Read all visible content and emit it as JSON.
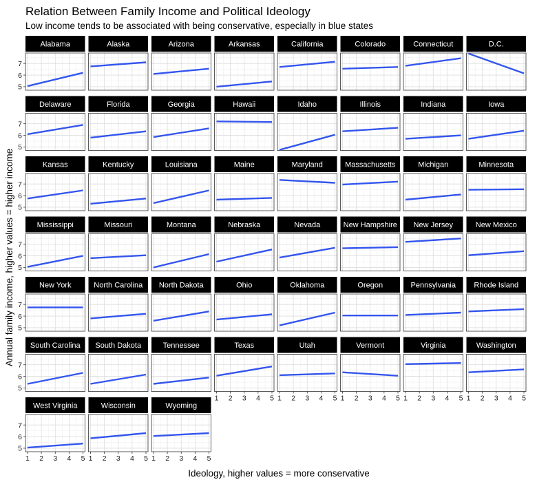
{
  "chart_data": {
    "type": "line",
    "facet": "state",
    "title": "Relation Between Family Income and Political Ideology",
    "subtitle": "Low income tends to be associated with being conservative, especially in blue states",
    "xlabel": "Ideology, higher values = more conservative",
    "ylabel": "Annual family income, higher values = higher income",
    "xlim": [
      1,
      5
    ],
    "ylim": [
      4.7,
      7.9
    ],
    "x_ticks": [
      1,
      2,
      3,
      4,
      5
    ],
    "y_ticks": [
      5,
      6,
      7
    ],
    "grid": true,
    "line_color": "#3355ee",
    "panels": [
      {
        "label": "Alabama",
        "x": [
          1,
          5
        ],
        "y": [
          5.05,
          6.2
        ]
      },
      {
        "label": "Alaska",
        "x": [
          1,
          5
        ],
        "y": [
          6.75,
          7.1
        ]
      },
      {
        "label": "Arizona",
        "x": [
          1,
          5
        ],
        "y": [
          6.1,
          6.55
        ]
      },
      {
        "label": "Arkansas",
        "x": [
          1,
          5
        ],
        "y": [
          5.0,
          5.45
        ]
      },
      {
        "label": "California",
        "x": [
          1,
          5
        ],
        "y": [
          6.7,
          7.15
        ]
      },
      {
        "label": "Colorado",
        "x": [
          1,
          5
        ],
        "y": [
          6.55,
          6.7
        ]
      },
      {
        "label": "Connecticut",
        "x": [
          1,
          5
        ],
        "y": [
          6.8,
          7.45
        ]
      },
      {
        "label": "D.C.",
        "x": [
          1,
          5
        ],
        "y": [
          7.85,
          6.15
        ]
      },
      {
        "label": "Delaware",
        "x": [
          1,
          5
        ],
        "y": [
          6.1,
          6.9
        ]
      },
      {
        "label": "Florida",
        "x": [
          1,
          5
        ],
        "y": [
          5.8,
          6.35
        ]
      },
      {
        "label": "Georgia",
        "x": [
          1,
          5
        ],
        "y": [
          5.85,
          6.6
        ]
      },
      {
        "label": "Hawaii",
        "x": [
          1,
          5
        ],
        "y": [
          7.2,
          7.15
        ]
      },
      {
        "label": "Idaho",
        "x": [
          1,
          5
        ],
        "y": [
          4.75,
          6.05
        ]
      },
      {
        "label": "Illinois",
        "x": [
          1,
          5
        ],
        "y": [
          6.35,
          6.65
        ]
      },
      {
        "label": "Indiana",
        "x": [
          1,
          5
        ],
        "y": [
          5.7,
          6.0
        ]
      },
      {
        "label": "Iowa",
        "x": [
          1,
          5
        ],
        "y": [
          5.7,
          6.4
        ]
      },
      {
        "label": "Kansas",
        "x": [
          1,
          5
        ],
        "y": [
          5.75,
          6.45
        ]
      },
      {
        "label": "Kentucky",
        "x": [
          1,
          5
        ],
        "y": [
          5.3,
          5.75
        ]
      },
      {
        "label": "Louisiana",
        "x": [
          1,
          5
        ],
        "y": [
          5.35,
          6.45
        ]
      },
      {
        "label": "Maine",
        "x": [
          1,
          5
        ],
        "y": [
          5.65,
          5.8
        ]
      },
      {
        "label": "Maryland",
        "x": [
          1,
          5
        ],
        "y": [
          7.35,
          7.1
        ]
      },
      {
        "label": "Massachusetts",
        "x": [
          1,
          5
        ],
        "y": [
          6.95,
          7.2
        ]
      },
      {
        "label": "Michigan",
        "x": [
          1,
          5
        ],
        "y": [
          5.65,
          6.1
        ]
      },
      {
        "label": "Minnesota",
        "x": [
          1,
          5
        ],
        "y": [
          6.5,
          6.55
        ]
      },
      {
        "label": "Mississippi",
        "x": [
          1,
          5
        ],
        "y": [
          5.05,
          6.0
        ]
      },
      {
        "label": "Missouri",
        "x": [
          1,
          5
        ],
        "y": [
          5.8,
          6.05
        ]
      },
      {
        "label": "Montana",
        "x": [
          1,
          5
        ],
        "y": [
          5.0,
          6.15
        ]
      },
      {
        "label": "Nebraska",
        "x": [
          1,
          5
        ],
        "y": [
          5.5,
          6.55
        ]
      },
      {
        "label": "Nevada",
        "x": [
          1,
          5
        ],
        "y": [
          5.85,
          6.7
        ]
      },
      {
        "label": "New Hampshire",
        "x": [
          1,
          5
        ],
        "y": [
          6.65,
          6.75
        ]
      },
      {
        "label": "New Jersey",
        "x": [
          1,
          5
        ],
        "y": [
          7.2,
          7.5
        ]
      },
      {
        "label": "New Mexico",
        "x": [
          1,
          5
        ],
        "y": [
          6.05,
          6.4
        ]
      },
      {
        "label": "New York",
        "x": [
          1,
          5
        ],
        "y": [
          6.75,
          6.75
        ]
      },
      {
        "label": "North Carolina",
        "x": [
          1,
          5
        ],
        "y": [
          5.8,
          6.2
        ]
      },
      {
        "label": "North Dakota",
        "x": [
          1,
          5
        ],
        "y": [
          5.6,
          6.4
        ]
      },
      {
        "label": "Ohio",
        "x": [
          1,
          5
        ],
        "y": [
          5.7,
          6.15
        ]
      },
      {
        "label": "Oklahoma",
        "x": [
          1,
          5
        ],
        "y": [
          5.2,
          6.3
        ]
      },
      {
        "label": "Oregon",
        "x": [
          1,
          5
        ],
        "y": [
          6.05,
          6.05
        ]
      },
      {
        "label": "Pennsylvania",
        "x": [
          1,
          5
        ],
        "y": [
          6.1,
          6.3
        ]
      },
      {
        "label": "Rhode Island",
        "x": [
          1,
          5
        ],
        "y": [
          6.4,
          6.6
        ]
      },
      {
        "label": "South Carolina",
        "x": [
          1,
          5
        ],
        "y": [
          5.35,
          6.3
        ]
      },
      {
        "label": "South Dakota",
        "x": [
          1,
          5
        ],
        "y": [
          5.35,
          6.15
        ]
      },
      {
        "label": "Tennessee",
        "x": [
          1,
          5
        ],
        "y": [
          5.35,
          5.9
        ]
      },
      {
        "label": "Texas",
        "x": [
          1,
          5
        ],
        "y": [
          6.05,
          6.85
        ]
      },
      {
        "label": "Utah",
        "x": [
          1,
          5
        ],
        "y": [
          6.1,
          6.25
        ]
      },
      {
        "label": "Vermont",
        "x": [
          1,
          5
        ],
        "y": [
          6.35,
          6.05
        ]
      },
      {
        "label": "Virginia",
        "x": [
          1,
          5
        ],
        "y": [
          7.05,
          7.15
        ]
      },
      {
        "label": "Washington",
        "x": [
          1,
          5
        ],
        "y": [
          6.35,
          6.6
        ]
      },
      {
        "label": "West Virginia",
        "x": [
          1,
          5
        ],
        "y": [
          5.05,
          5.4
        ]
      },
      {
        "label": "Wisconsin",
        "x": [
          1,
          5
        ],
        "y": [
          5.85,
          6.3
        ]
      },
      {
        "label": "Wyoming",
        "x": [
          1,
          5
        ],
        "y": [
          6.05,
          6.3
        ]
      }
    ]
  }
}
